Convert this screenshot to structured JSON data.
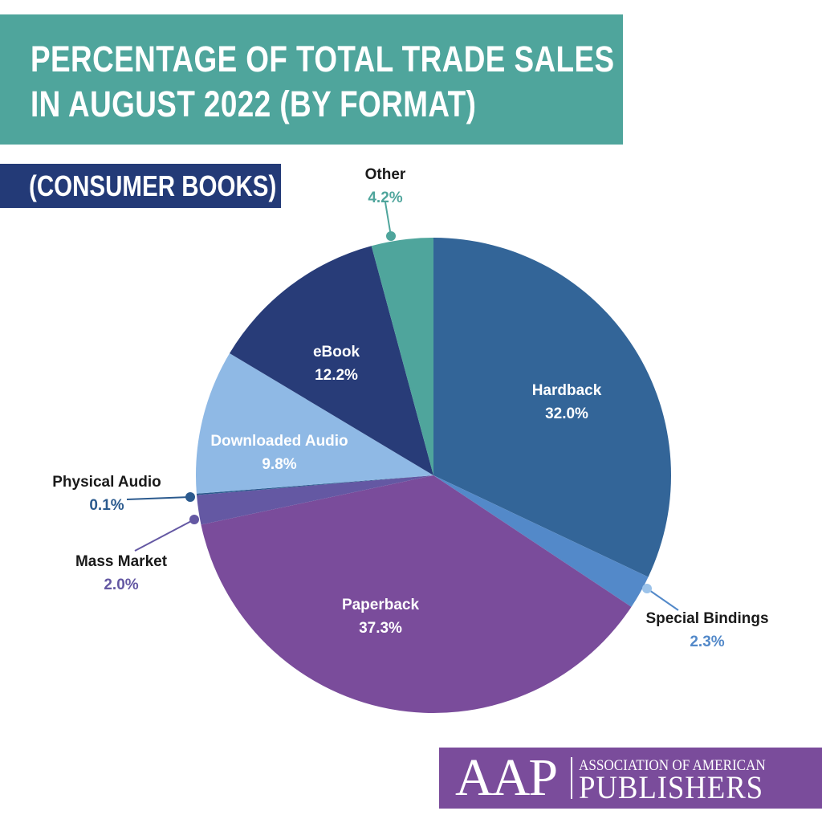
{
  "title": {
    "line1": "PERCENTAGE OF TOTAL TRADE SALES",
    "line2": "IN AUGUST 2022 (BY FORMAT)"
  },
  "subtitle": "(CONSUMER BOOKS)",
  "chart_data": {
    "type": "pie",
    "title": "PERCENTAGE OF TOTAL TRADE SALES IN AUGUST 2022 (BY FORMAT)",
    "subtitle": "(CONSUMER BOOKS)",
    "unit": "%",
    "start": "12 o'clock, clockwise",
    "slices": [
      {
        "label": "Hardback",
        "value": 32.0,
        "display": "32.0%",
        "color": "#336598",
        "label_color": "#ffffff",
        "value_color": "#ffffff"
      },
      {
        "label": "Special Bindings",
        "value": 2.3,
        "display": "2.3%",
        "color": "#5389c9",
        "label_color": "#1a1a1a",
        "value_color": "#5389c9"
      },
      {
        "label": "Paperback",
        "value": 37.3,
        "display": "37.3%",
        "color": "#7a4c9b",
        "label_color": "#ffffff",
        "value_color": "#ffffff"
      },
      {
        "label": "Mass Market",
        "value": 2.0,
        "display": "2.0%",
        "color": "#6458a3",
        "label_color": "#1a1a1a",
        "value_color": "#6458a3"
      },
      {
        "label": "Physical Audio",
        "value": 0.1,
        "display": "0.1%",
        "color": "#2b5a8e",
        "label_color": "#1a1a1a",
        "value_color": "#2b5a8e"
      },
      {
        "label": "Downloaded Audio",
        "value": 9.8,
        "display": "9.8%",
        "color": "#8fb9e5",
        "label_color": "#ffffff",
        "value_color": "#ffffff"
      },
      {
        "label": "eBook",
        "value": 12.2,
        "display": "12.2%",
        "color": "#283c78",
        "label_color": "#ffffff",
        "value_color": "#ffffff"
      },
      {
        "label": "Other",
        "value": 4.2,
        "display": "4.2%",
        "color": "#4fa59c",
        "label_color": "#1a1a1a",
        "value_color": "#4fa59c"
      }
    ]
  },
  "logo": {
    "mark": "AAP",
    "line1": "ASSOCIATION OF AMERICAN",
    "line2": "PUBLISHERS"
  }
}
